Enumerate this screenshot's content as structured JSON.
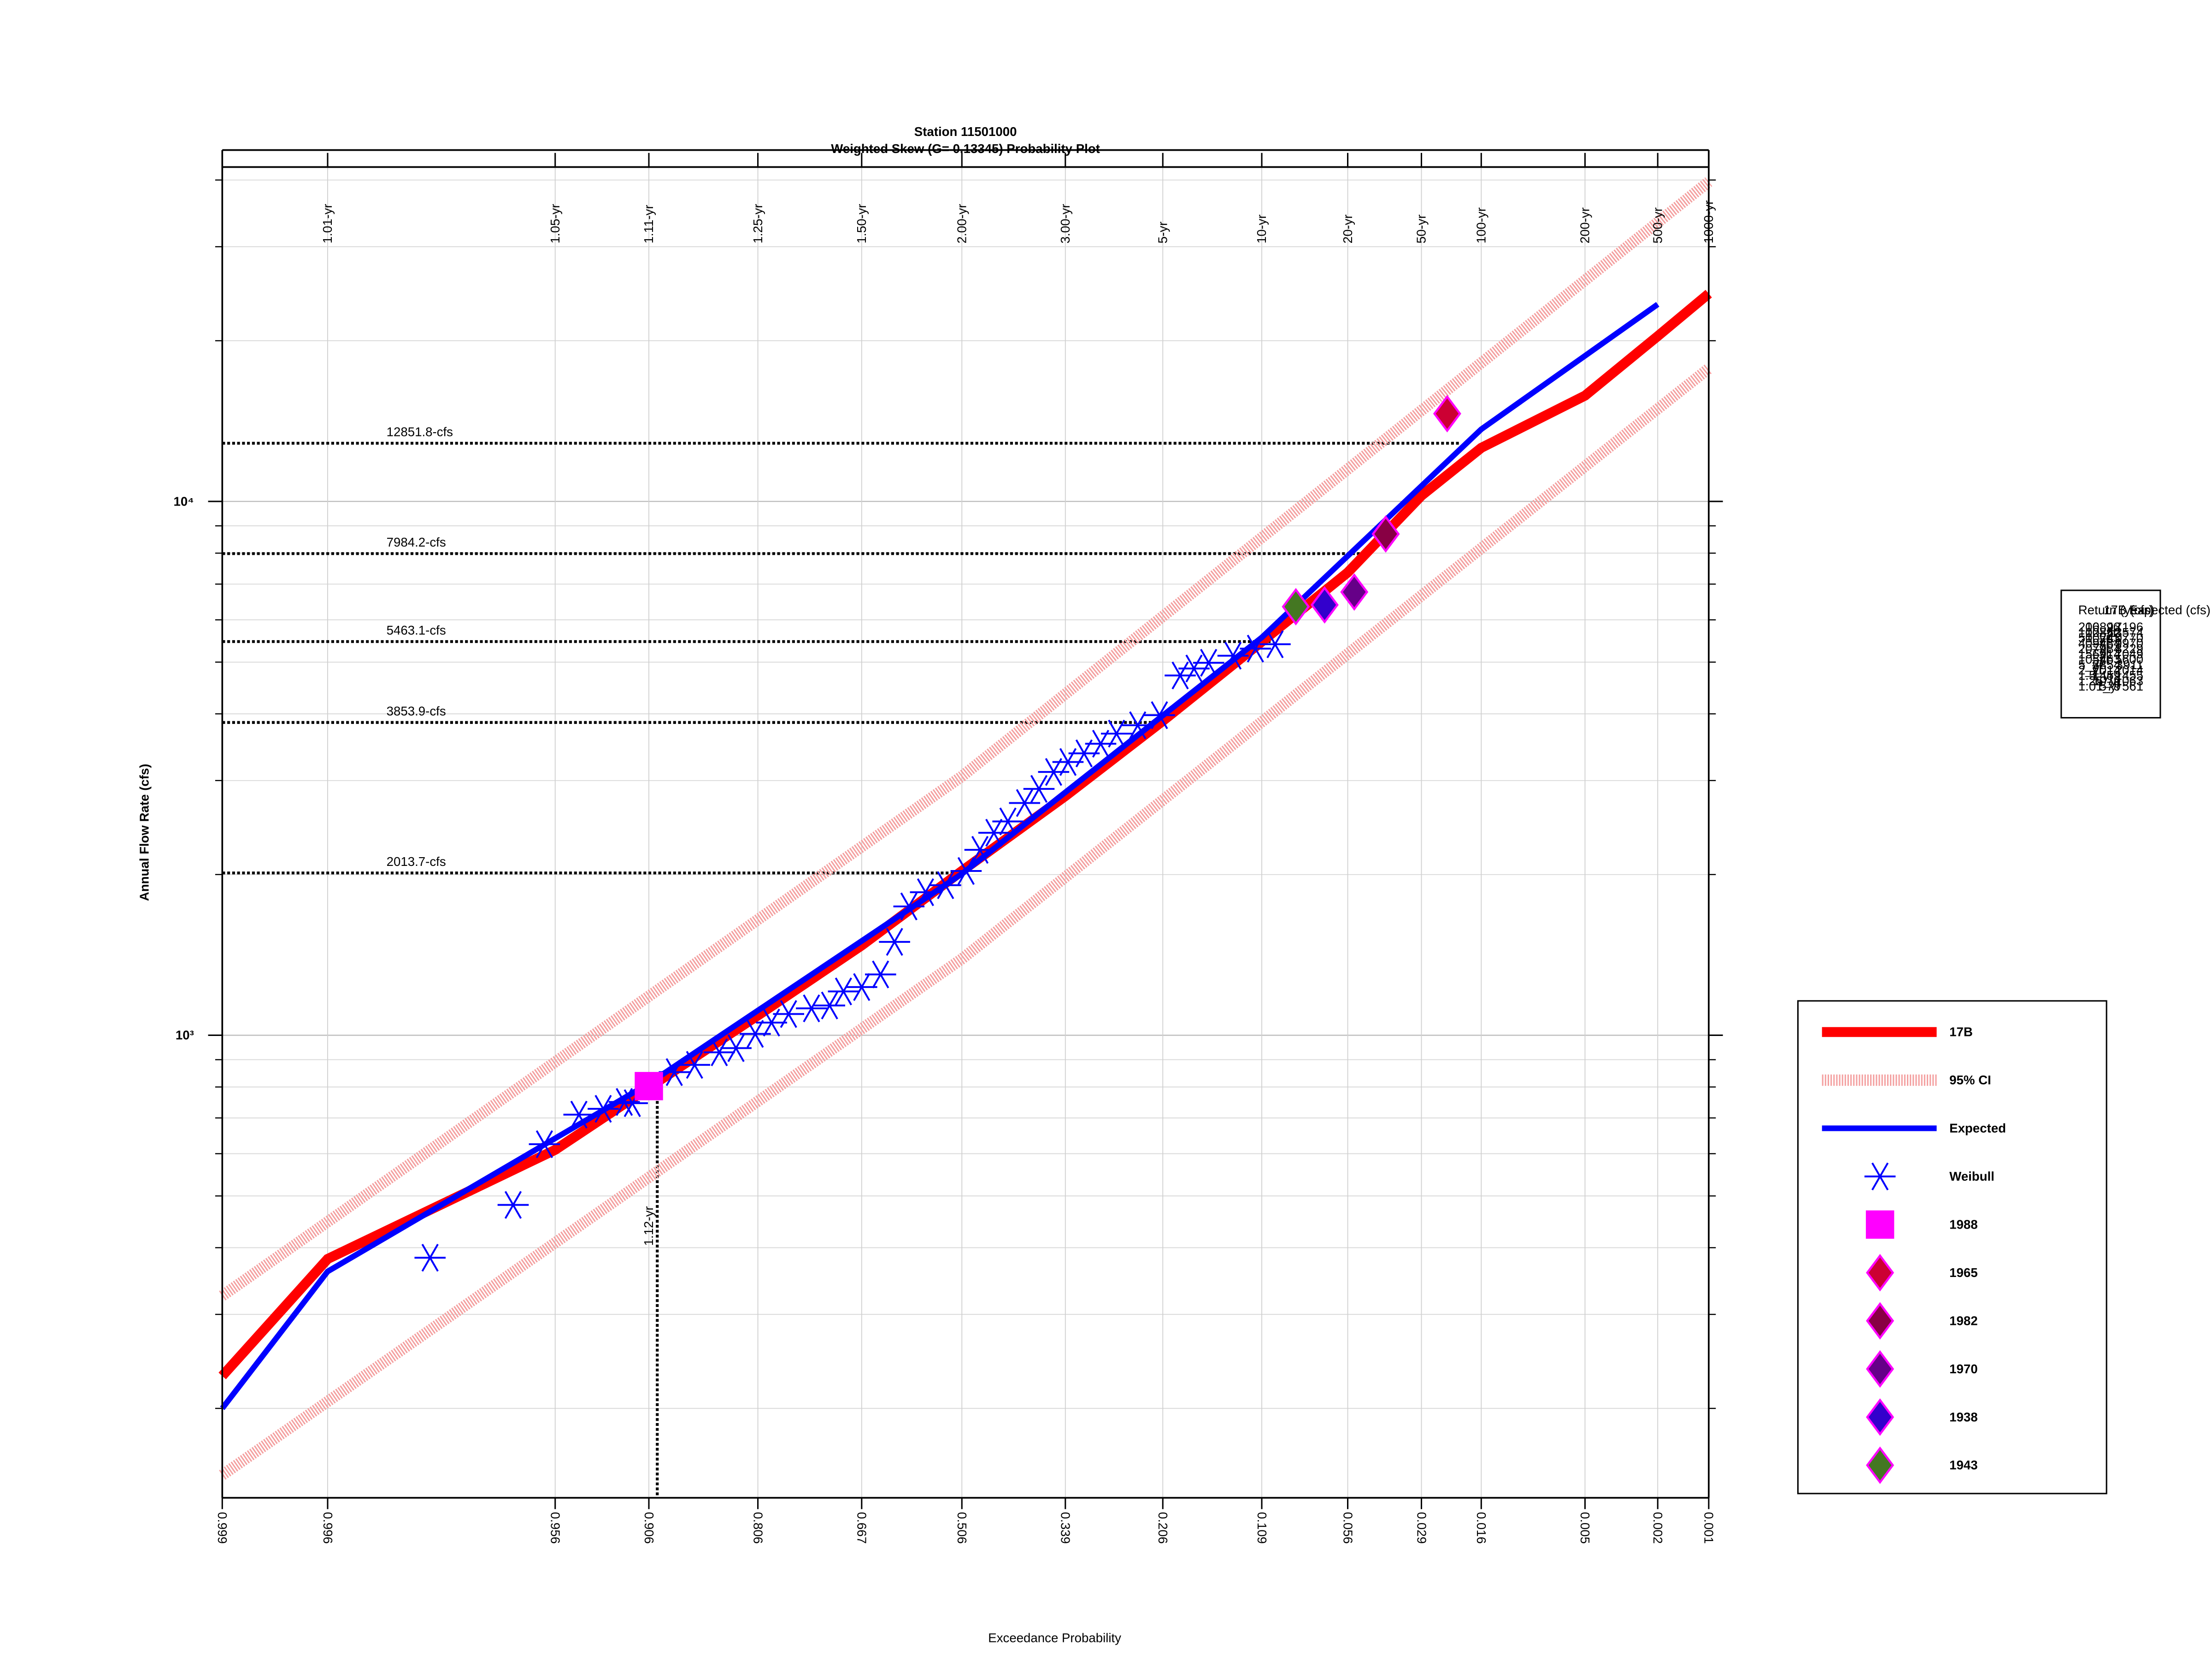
{
  "chart_data": {
    "type": "probability",
    "title": "Station 11501000",
    "subtitle": "Weighted Skew (G= 0.13345) Probability Plot",
    "x_label": "Exceedance Probability",
    "y_label": "Annual Flow Rate (cfs)",
    "xlim": [
      0.999,
      0.001
    ],
    "xticks": [
      0.999,
      0.996,
      0.956,
      0.906,
      0.806,
      0.667,
      0.506,
      0.339,
      0.206,
      0.109,
      0.056,
      0.029,
      0.016,
      0.005,
      0.002,
      0.001
    ],
    "x2ticks": [
      {
        "value": 0.996,
        "label": "1.01-yr"
      },
      {
        "value": 0.956,
        "label": "1.05-yr"
      },
      {
        "value": 0.906,
        "label": "1.11-yr"
      },
      {
        "value": 0.806,
        "label": "1.25-yr"
      },
      {
        "value": 0.667,
        "label": "1.50-yr"
      },
      {
        "value": 0.506,
        "label": "2.00-yr"
      },
      {
        "value": 0.339,
        "label": "3.00-yr"
      },
      {
        "value": 0.206,
        "label": "5-yr"
      },
      {
        "value": 0.109,
        "label": "10-yr"
      },
      {
        "value": 0.056,
        "label": "20-yr"
      },
      {
        "value": 0.029,
        "label": "50-yr"
      },
      {
        "value": 0.016,
        "label": "100-yr"
      },
      {
        "value": 0.005,
        "label": "200-yr"
      },
      {
        "value": 0.002,
        "label": "500-yr"
      },
      {
        "value": 0.001,
        "label": "1000-yr"
      }
    ],
    "ylim": [
      136,
      42300
    ],
    "log_y": true,
    "yticks": [
      {
        "value": 1000,
        "label": "10³"
      },
      {
        "value": 10000,
        "label": "10⁴"
      }
    ],
    "yminorticks": [
      200,
      300,
      400,
      500,
      600,
      700,
      800,
      900,
      2000,
      3000,
      4000,
      5000,
      6000,
      7000,
      8000,
      9000,
      20000,
      30000,
      40000
    ],
    "grid": true,
    "legend": "lower right",
    "series": [
      {
        "name": "17B",
        "style": "line",
        "color": "#ff0000",
        "width": 7,
        "x": [
          0.999,
          0.996,
          0.956,
          0.906,
          0.806,
          0.667,
          0.506,
          0.339,
          0.206,
          0.109,
          0.056,
          0.029,
          0.016,
          0.005,
          0.002,
          0.001
        ],
        "values": [
          230,
          381,
          610,
          798,
          1089,
          1473,
          2031,
          2805,
          3879,
          5460,
          7360,
          10250,
          12600,
          15780,
          20400,
          24500
        ]
      },
      {
        "name": "95% CI",
        "style": "band",
        "color": "#f4a0a0",
        "width": 8,
        "x": [
          0.999,
          0.506,
          0.001
        ],
        "values": [
          325,
          3055,
          39700
        ],
        "lower": [
          150,
          1390,
          17740
        ]
      },
      {
        "name": "Expected",
        "style": "line",
        "color": "#0000ff",
        "width": 4,
        "x": [
          0.999,
          0.996,
          0.906,
          0.506,
          0.109,
          0.016,
          0.002
        ],
        "values": [
          200,
          361,
          812,
          2006,
          5560,
          13650,
          23400
        ]
      },
      {
        "name": "Weibull",
        "style": "marker",
        "marker": "star",
        "color": "#0000ff",
        "x": [
          0.987,
          0.97,
          0.96,
          0.946,
          0.934,
          0.922,
          0.917,
          0.887,
          0.87,
          0.847,
          0.83,
          0.809,
          0.79,
          0.769,
          0.739,
          0.714,
          0.694,
          0.667,
          0.638,
          0.616,
          0.593,
          0.566,
          0.533,
          0.499,
          0.476,
          0.453,
          0.43,
          0.403,
          0.38,
          0.357,
          0.335,
          0.311,
          0.287,
          0.265,
          0.237,
          0.21,
          0.186,
          0.171,
          0.156,
          0.133,
          0.114,
          0.099
        ],
        "values": [
          383,
          481,
          625,
          710,
          728,
          750,
          746,
          853,
          880,
          929,
          946,
          1006,
          1056,
          1096,
          1123,
          1137,
          1208,
          1231,
          1300,
          1496,
          1743,
          1853,
          1910,
          2031,
          2225,
          2395,
          2515,
          2723,
          2894,
          3113,
          3250,
          3373,
          3516,
          3673,
          3808,
          3977,
          4720,
          4864,
          4985,
          5140,
          5300,
          5400
        ]
      },
      {
        "name": "1988",
        "style": "marker",
        "marker": "square",
        "color": "#ff00ff",
        "x": [
          0.906
        ],
        "values": [
          803
        ]
      },
      {
        "name": "1965",
        "style": "marker",
        "marker": "diamond",
        "color": "#cc0033",
        "x": [
          0.0226
        ],
        "values": [
          14600
        ]
      },
      {
        "name": "1982",
        "style": "marker",
        "marker": "diamond",
        "color": "#880044",
        "x": [
          0.0403
        ],
        "values": [
          8690
        ]
      },
      {
        "name": "1970",
        "style": "marker",
        "marker": "diamond",
        "color": "#660088",
        "x": [
          0.053
        ],
        "values": [
          6765
        ]
      },
      {
        "name": "1938",
        "style": "marker",
        "marker": "diamond",
        "color": "#3300cc",
        "x": [
          0.0677
        ],
        "values": [
          6400
        ]
      },
      {
        "name": "1943",
        "style": "marker",
        "marker": "diamond",
        "color": "#447722",
        "x": [
          0.0848
        ],
        "values": [
          6350
        ]
      }
    ],
    "hlines": [
      {
        "label": "12851.8-cfs",
        "value": 12851.8,
        "x": 0.02
      },
      {
        "label": "7984.2-cfs",
        "value": 7984.2,
        "x": 0.05
      },
      {
        "label": "5463.1-cfs",
        "value": 5463.1,
        "x": 0.1
      },
      {
        "label": "3853.9-cfs",
        "value": 3853.9,
        "x": 0.2
      },
      {
        "label": "2013.7-cfs",
        "value": 2013.7,
        "x": 0.5
      }
    ],
    "vlines": [
      {
        "label": "1.12-yr",
        "x": 0.9,
        "value": 803
      }
    ],
    "table": {
      "header": [
        "Return (year)",
        "17B (cfs)",
        "Expected (cfs)"
      ],
      "rows": [
        [
          "200_yr",
          "16893",
          "17196"
        ],
        [
          "100_yr",
          "12852",
          "13574"
        ],
        [
          "50_yr",
          "10243",
          "10770"
        ],
        [
          "40_yr",
          "9484",
          "9970"
        ],
        [
          "20_yr",
          "7984",
          "8229"
        ],
        [
          "15_yr",
          "6914",
          "7049"
        ],
        [
          "10_yr",
          "5463",
          "5600"
        ],
        [
          "5_yr",
          "3854",
          "3911"
        ],
        [
          "2_yr",
          "2014",
          "2014"
        ],
        [
          "1.5_yr",
          "1459",
          "1455"
        ],
        [
          "1.25_yr",
          "1079",
          "1063"
        ],
        [
          "1.01_yr",
          "579",
          "561"
        ]
      ]
    }
  }
}
